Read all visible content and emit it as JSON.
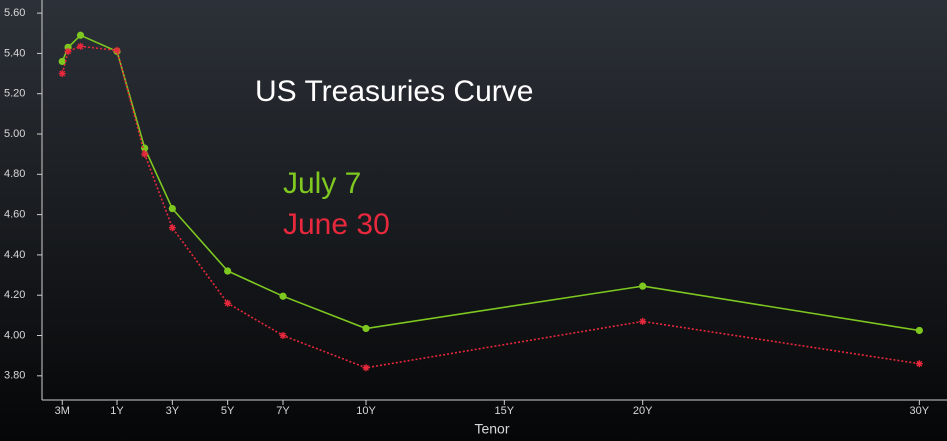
{
  "chart_data": {
    "type": "line",
    "title": "US Treasuries Curve",
    "x_label": "Tenor",
    "x": [
      0.25,
      0.33,
      0.5,
      1,
      2,
      3,
      5,
      7,
      10,
      20,
      30
    ],
    "series": [
      {
        "name": "July 7",
        "color": "#7ec820",
        "style": "solid",
        "marker": "circle",
        "values": [
          5.36,
          5.43,
          5.49,
          5.41,
          4.93,
          4.63,
          4.32,
          4.195,
          4.035,
          4.245,
          4.025
        ]
      },
      {
        "name": "June 30",
        "color": "#e8283c",
        "style": "dotted",
        "marker": "asterisk",
        "values": [
          5.3,
          5.41,
          5.435,
          5.415,
          4.9,
          4.535,
          4.16,
          4.0,
          3.84,
          4.07,
          3.86
        ]
      }
    ],
    "xlim": [
      0,
      31
    ],
    "xticks": [
      {
        "value": 0.25,
        "label": "3M"
      },
      {
        "value": 1,
        "label": "1Y"
      },
      {
        "value": 3,
        "label": "3Y"
      },
      {
        "value": 5,
        "label": "5Y"
      },
      {
        "value": 7,
        "label": "7Y"
      },
      {
        "value": 10,
        "label": "10Y"
      },
      {
        "value": 15,
        "label": "15Y"
      },
      {
        "value": 20,
        "label": "20Y"
      },
      {
        "value": 30,
        "label": "30Y"
      }
    ],
    "ylim": [
      3.68,
      5.665
    ],
    "yticks": [
      {
        "value": 3.8,
        "label": "3.80"
      },
      {
        "value": 4.0,
        "label": "4.00"
      },
      {
        "value": 4.2,
        "label": "4.20"
      },
      {
        "value": 4.4,
        "label": "4.40"
      },
      {
        "value": 4.6,
        "label": "4.60"
      },
      {
        "value": 4.8,
        "label": "4.80"
      },
      {
        "value": 5.0,
        "label": "5.00"
      },
      {
        "value": 5.2,
        "label": "5.20"
      },
      {
        "value": 5.4,
        "label": "5.40"
      },
      {
        "value": 5.6,
        "label": "5.60"
      }
    ]
  }
}
